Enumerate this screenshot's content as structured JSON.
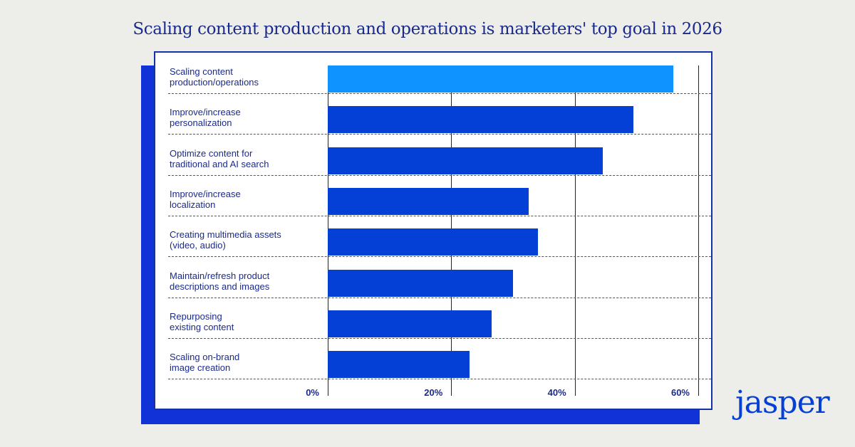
{
  "chart_data": {
    "type": "bar",
    "orientation": "horizontal",
    "title": "Scaling content production and operations is marketers' top goal in 2026",
    "categories": [
      "Scaling content\nproduction/operations",
      "Improve/increase\npersonalization",
      "Optimize content for\ntraditional and AI search",
      "Improve/increase\nlocalization",
      "Creating multimedia assets\n(video, audio)",
      "Maintain/refresh product\ndescriptions and images",
      "Repurposing\nexisting content",
      "Scaling on-brand\nimage creation"
    ],
    "values": [
      56,
      49.5,
      44.5,
      32.5,
      34,
      30,
      26.5,
      23
    ],
    "highlight_index": 0,
    "xlim": [
      0,
      60
    ],
    "xticks": [
      0,
      20,
      40,
      60
    ],
    "tick_labels": [
      "0%",
      "20%",
      "40%",
      "60%"
    ],
    "xlabel": "",
    "ylabel": "",
    "legend": "none"
  },
  "brand": {
    "logo_text": "jasper"
  },
  "colors": {
    "highlight": "#0f93ff",
    "bar": "#0540d6",
    "shadow": "#1132d6",
    "title": "#1a2a8c",
    "background": "#ededea"
  }
}
